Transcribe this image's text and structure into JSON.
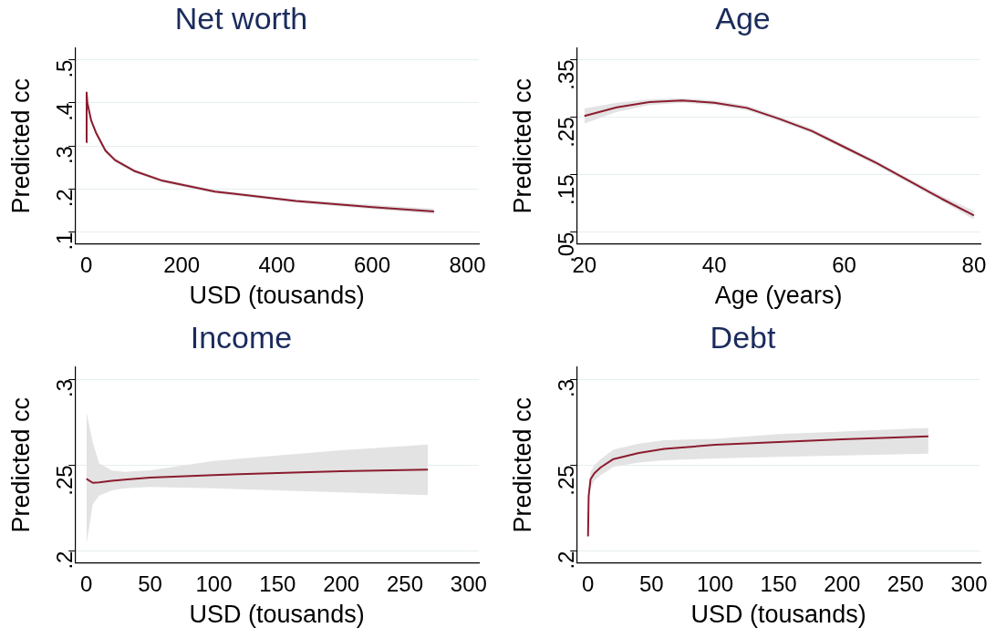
{
  "chart_data": [
    {
      "type": "line",
      "title": "Net worth",
      "xlabel": "USD (tousands)",
      "ylabel": "Predicted cc",
      "xlim": [
        -24,
        824
      ],
      "ylim": [
        0.072,
        0.527
      ],
      "xticks": [
        0,
        200,
        400,
        600,
        800
      ],
      "yticks": [
        {
          "value": 0.1,
          "label": ".1"
        },
        {
          "value": 0.2,
          "label": ".2"
        },
        {
          "value": 0.3,
          "label": ".3"
        },
        {
          "value": 0.4,
          "label": ".4"
        },
        {
          "value": 0.5,
          "label": ".5"
        }
      ],
      "grid": "y",
      "legend": false,
      "series": [
        {
          "color": "#8b1c2e",
          "x": [
            0,
            0.5,
            2,
            10,
            20,
            40,
            60,
            100,
            160,
            270,
            440,
            600,
            730
          ],
          "values": [
            0.308,
            0.424,
            0.4,
            0.359,
            0.331,
            0.289,
            0.267,
            0.242,
            0.219,
            0.194,
            0.172,
            0.158,
            0.148
          ],
          "lower": [
            0.3,
            0.41,
            0.39,
            0.352,
            0.325,
            0.284,
            0.262,
            0.238,
            0.215,
            0.19,
            0.168,
            0.153,
            0.142
          ],
          "upper": [
            0.32,
            0.435,
            0.41,
            0.366,
            0.337,
            0.294,
            0.272,
            0.246,
            0.223,
            0.198,
            0.176,
            0.163,
            0.154
          ]
        }
      ]
    },
    {
      "type": "line",
      "title": "Age",
      "xlabel": "Age (years)",
      "ylabel": "Predicted cc",
      "xlim": [
        18.8,
        81
      ],
      "ylim": [
        0.029,
        0.37
      ],
      "xticks": [
        20,
        40,
        60,
        80
      ],
      "yticks": [
        {
          "value": 0.05,
          "label": ".05"
        },
        {
          "value": 0.15,
          "label": ".15"
        },
        {
          "value": 0.25,
          "label": ".25"
        },
        {
          "value": 0.35,
          "label": ".35"
        }
      ],
      "grid": "y",
      "legend": false,
      "series": [
        {
          "color": "#8b1c2e",
          "x": [
            20,
            25,
            30,
            35,
            40,
            45,
            50,
            55,
            60,
            65,
            70,
            75,
            80
          ],
          "values": [
            0.252,
            0.267,
            0.276,
            0.279,
            0.275,
            0.266,
            0.247,
            0.226,
            0.198,
            0.17,
            0.139,
            0.108,
            0.079
          ],
          "lower": [
            0.239,
            0.259,
            0.271,
            0.275,
            0.271,
            0.262,
            0.243,
            0.222,
            0.194,
            0.166,
            0.135,
            0.104,
            0.072
          ],
          "upper": [
            0.265,
            0.275,
            0.281,
            0.283,
            0.279,
            0.27,
            0.251,
            0.23,
            0.202,
            0.174,
            0.143,
            0.113,
            0.087
          ]
        }
      ]
    },
    {
      "type": "line",
      "title": "Income",
      "xlabel": "USD (tousands)",
      "ylabel": "Predicted cc",
      "xlim": [
        -9,
        308
      ],
      "ylim": [
        0.193,
        0.307
      ],
      "xticks": [
        0,
        50,
        100,
        150,
        200,
        250,
        300
      ],
      "yticks": [
        {
          "value": 0.2,
          "label": ".2"
        },
        {
          "value": 0.25,
          "label": ".25"
        },
        {
          "value": 0.3,
          "label": ".3"
        }
      ],
      "grid": "y",
      "legend": false,
      "series": [
        {
          "color": "#8b1c2e",
          "x": [
            0,
            5,
            10,
            20,
            30,
            50,
            100,
            150,
            200,
            268
          ],
          "values": [
            0.242,
            0.2397,
            0.2399,
            0.2409,
            0.2416,
            0.2427,
            0.2442,
            0.2454,
            0.2464,
            0.2474
          ],
          "lower": [
            0.2036,
            0.2274,
            0.2323,
            0.2353,
            0.2365,
            0.2373,
            0.2365,
            0.2353,
            0.2341,
            0.2325
          ],
          "upper": [
            0.281,
            0.263,
            0.251,
            0.2468,
            0.246,
            0.247,
            0.2524,
            0.2556,
            0.2587,
            0.262
          ]
        }
      ]
    },
    {
      "type": "line",
      "title": "Debt",
      "xlabel": "USD (tousands)",
      "ylabel": "Predicted cc",
      "xlim": [
        -9,
        309
      ],
      "ylim": [
        0.193,
        0.307
      ],
      "xticks": [
        0,
        50,
        100,
        150,
        200,
        250,
        300
      ],
      "yticks": [
        {
          "value": 0.2,
          "label": ".2"
        },
        {
          "value": 0.25,
          "label": ".25"
        },
        {
          "value": 0.3,
          "label": ".3"
        }
      ],
      "grid": "y",
      "legend": false,
      "series": [
        {
          "color": "#8b1c2e",
          "x": [
            0,
            0.5,
            2,
            5,
            10,
            20,
            40,
            60,
            100,
            150,
            200,
            268
          ],
          "values": [
            0.2085,
            0.232,
            0.2418,
            0.2453,
            0.2487,
            0.2535,
            0.2571,
            0.2594,
            0.2618,
            0.2634,
            0.265,
            0.2667
          ],
          "lower": [
            0.207,
            0.228,
            0.237,
            0.241,
            0.244,
            0.249,
            0.2515,
            0.2528,
            0.2539,
            0.2548,
            0.2556,
            0.2567
          ],
          "upper": [
            0.21,
            0.236,
            0.246,
            0.25,
            0.2535,
            0.259,
            0.2625,
            0.2645,
            0.2653,
            0.268,
            0.2695,
            0.2716
          ]
        }
      ]
    }
  ]
}
